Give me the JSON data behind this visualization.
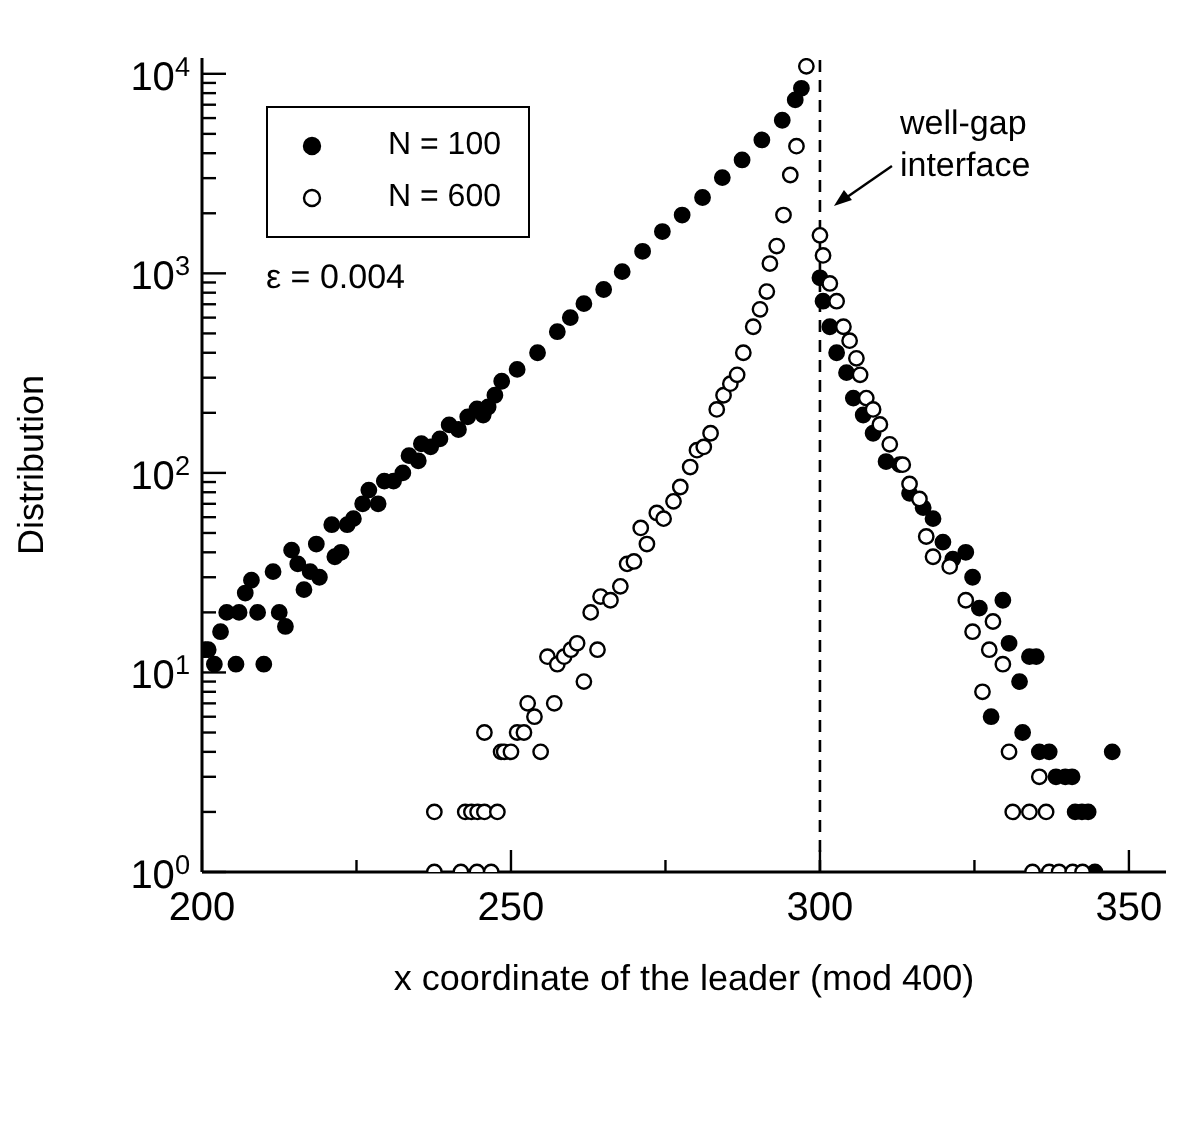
{
  "chart_data": {
    "type": "scatter",
    "xlabel": "x coordinate of the leader (mod 400)",
    "ylabel": "Distribution",
    "xlim": [
      200,
      356
    ],
    "xticks": [
      200,
      {
        "value": 225,
        "label": null
      },
      250,
      {
        "value": 275,
        "label": null
      },
      300,
      {
        "value": 325,
        "label": null
      },
      350
    ],
    "ylim": [
      1,
      12000
    ],
    "yticks": [
      {
        "value": 1,
        "label": "10$^{0}$"
      },
      {
        "value": 2,
        "label": null
      },
      {
        "value": 3,
        "label": null
      },
      {
        "value": 4,
        "label": null
      },
      {
        "value": 5,
        "label": null
      },
      {
        "value": 6,
        "label": null
      },
      {
        "value": 7,
        "label": null
      },
      {
        "value": 8,
        "label": null
      },
      {
        "value": 9,
        "label": null
      },
      {
        "value": 10,
        "label": "10$^{1}$"
      },
      {
        "value": 20,
        "label": null
      },
      {
        "value": 30,
        "label": null
      },
      {
        "value": 40,
        "label": null
      },
      {
        "value": 50,
        "label": null
      },
      {
        "value": 60,
        "label": null
      },
      {
        "value": 70,
        "label": null
      },
      {
        "value": 80,
        "label": null
      },
      {
        "value": 90,
        "label": null
      },
      {
        "value": 100,
        "label": "10$^{2}$"
      },
      {
        "value": 200,
        "label": null
      },
      {
        "value": 300,
        "label": null
      },
      {
        "value": 400,
        "label": null
      },
      {
        "value": 500,
        "label": null
      },
      {
        "value": 600,
        "label": null
      },
      {
        "value": 700,
        "label": null
      },
      {
        "value": 800,
        "label": null
      },
      {
        "value": 900,
        "label": null
      },
      {
        "value": 1000,
        "label": "10$^{3}$"
      },
      {
        "value": 2000,
        "label": null
      },
      {
        "value": 3000,
        "label": null
      },
      {
        "value": 4000,
        "label": null
      },
      {
        "value": 5000,
        "label": null
      },
      {
        "value": 6000,
        "label": null
      },
      {
        "value": 7000,
        "label": null
      },
      {
        "value": 8000,
        "label": null
      },
      {
        "value": 9000,
        "label": null
      },
      {
        "value": 10000,
        "label": "10$^{4}$"
      }
    ],
    "log": "y",
    "legend": "top left",
    "marker": "circle",
    "annotations": [
      "ε = 0.004"
    ],
    "ref_lines": [
      {
        "axis": "x",
        "value": 300,
        "label": "well-gap interface",
        "line_style": "dashed",
        "color": "#000000"
      }
    ],
    "series": [
      {
        "name": "N = 100",
        "color": "#000000",
        "x": [
          200.5,
          201,
          202,
          203,
          204,
          205.5,
          206,
          207,
          208,
          209,
          210,
          211.5,
          212.5,
          213.5,
          214.5,
          215.5,
          216.5,
          217.5,
          218.5,
          219,
          221,
          221.5,
          222.5,
          223.5,
          224.5,
          226,
          227,
          228.5,
          229.5,
          231,
          232.5,
          233.5,
          235,
          235.5,
          237,
          238.5,
          240,
          241.5,
          243,
          244.5,
          245.5,
          246.3,
          247.4,
          248.5,
          251,
          254.3,
          257.5,
          259.6,
          261.8,
          265,
          268,
          271.3,
          274.5,
          277.7,
          281,
          284.2,
          287.4,
          290.6,
          293.9,
          296,
          297,
          300,
          300.5,
          301.6,
          302.7,
          304.3,
          305.4,
          307,
          308.6,
          310.7,
          312.9,
          314.5,
          316.7,
          318.3,
          319.9,
          321.5,
          323.6,
          324.7,
          325.8,
          327.7,
          329.6,
          330.6,
          332.3,
          332.8,
          333.9,
          335,
          335.5,
          337.1,
          338.2,
          339.7,
          340.8,
          341.3,
          342.4,
          343.4,
          344.5,
          347.3
        ],
        "values": [
          13,
          13,
          11,
          16,
          20,
          11,
          20,
          25,
          29,
          20,
          11,
          32,
          20,
          17,
          41,
          35,
          26,
          32,
          44,
          30,
          55,
          38,
          40,
          55,
          59,
          70,
          82,
          70,
          91,
          91,
          100,
          122,
          115,
          140,
          135,
          148,
          174,
          165,
          191,
          209,
          195,
          214,
          245,
          288,
          330,
          400,
          510,
          600,
          705,
          830,
          1020,
          1290,
          1620,
          1960,
          2400,
          3020,
          3700,
          4660,
          5850,
          7400,
          8460,
          950,
          725,
          540,
          400,
          318,
          237,
          195,
          158,
          114,
          110,
          79,
          67,
          59,
          45,
          37,
          40,
          30,
          21,
          6,
          23,
          14,
          9,
          5,
          12,
          12,
          4,
          4,
          3,
          3,
          3,
          2,
          2,
          2,
          1,
          4
        ]
      },
      {
        "name": "N = 600",
        "color": "#000000",
        "x": [
          237.6,
          241.9,
          244.5,
          246.8,
          237.6,
          242.6,
          243.6,
          244.6,
          245.7,
          247.8,
          245.7,
          248.4,
          248.9,
          250,
          251,
          252.1,
          254.8,
          252.7,
          253.8,
          257,
          255.9,
          257.5,
          258.6,
          259.7,
          260.7,
          261.8,
          264,
          262.9,
          264.5,
          266.1,
          267.7,
          268.8,
          269.9,
          272,
          271,
          273.6,
          274.7,
          276.3,
          277.4,
          279,
          280.1,
          281.2,
          282.3,
          283.3,
          284.4,
          285.5,
          286.6,
          287.6,
          289.2,
          290.3,
          291.4,
          291.9,
          293,
          294.1,
          295.2,
          296.2,
          297.8,
          300,
          300.5,
          301.6,
          302.7,
          303.8,
          304.8,
          305.9,
          306.5,
          307.5,
          308.6,
          309.7,
          311.3,
          313.4,
          314.5,
          316.1,
          317.2,
          318.3,
          321,
          323.6,
          324.7,
          326.3,
          327.4,
          328,
          329.6,
          330.6,
          331.2,
          333.9,
          335.5,
          336.6,
          334.4,
          337.1,
          338.7,
          340.9,
          342.5
        ],
        "values": [
          1,
          1,
          1,
          1,
          2,
          2,
          2,
          2,
          2,
          2,
          5,
          4,
          4,
          4,
          5,
          5,
          4,
          7,
          6,
          7,
          12,
          11,
          12,
          13,
          14,
          9,
          13,
          20,
          24,
          23,
          27,
          35,
          36,
          44,
          53,
          63,
          59,
          72,
          85,
          107,
          130,
          135,
          158,
          208,
          245,
          280,
          310,
          400,
          540,
          660,
          810,
          1120,
          1370,
          1960,
          3110,
          4340,
          10900,
          1550,
          1230,
          890,
          725,
          540,
          460,
          375,
          310,
          237,
          208,
          175,
          139,
          110,
          88,
          74,
          48,
          38,
          34,
          23,
          16,
          8,
          13,
          18,
          11,
          4,
          2,
          2,
          3,
          2,
          1,
          1,
          1,
          1,
          1
        ]
      }
    ]
  }
}
